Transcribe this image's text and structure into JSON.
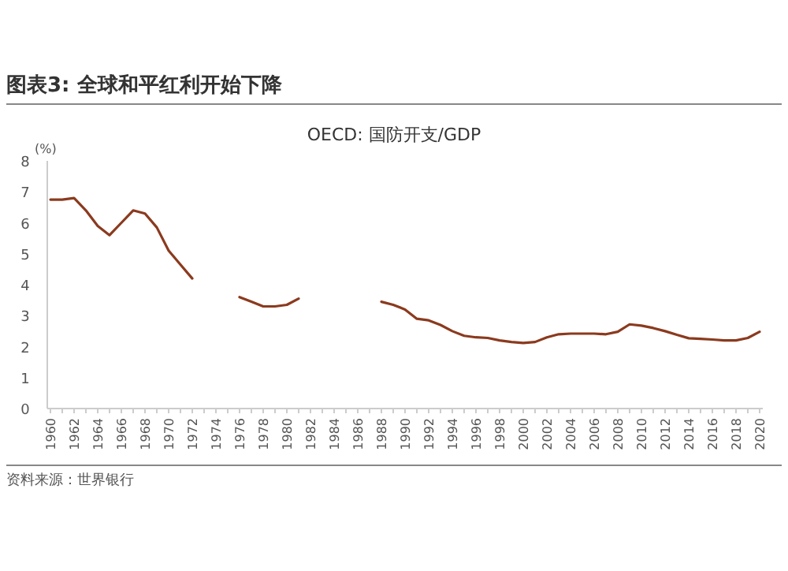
{
  "chart_data": {
    "type": "line",
    "title": "图表3: 全球和平红利开始下降",
    "subtitle": "OECD: 国防开支/GDP",
    "ylabel": "(%)",
    "annotations": [
      "资料来源：世界银行"
    ],
    "categories": [
      "1960",
      null,
      "1962",
      null,
      "1964",
      null,
      "1966",
      null,
      "1968",
      null,
      "1970",
      null,
      "1972",
      null,
      "1974",
      null,
      "1976",
      null,
      "1978",
      null,
      "1980",
      null,
      "1982",
      null,
      "1984",
      null,
      "1986",
      null,
      "1988",
      null,
      "1990",
      null,
      "1992",
      null,
      "1994",
      null,
      "1996",
      null,
      "1998",
      null,
      "2000",
      null,
      "2002",
      null,
      "2004",
      null,
      "2006",
      null,
      "2008",
      null,
      "2010",
      null,
      "2012",
      null,
      "2014",
      null,
      "2016",
      null,
      "2018",
      null,
      "2020"
    ],
    "series": [
      {
        "color": "#8b3a1e",
        "values": [
          6.75,
          6.75,
          6.8,
          6.4,
          5.9,
          5.6,
          6.0,
          6.4,
          6.3,
          5.85,
          5.1,
          4.65,
          4.2,
          null,
          null,
          null,
          3.6,
          3.45,
          3.3,
          3.3,
          3.35,
          3.55,
          null,
          null,
          null,
          null,
          null,
          null,
          3.45,
          3.35,
          3.2,
          2.9,
          2.85,
          2.7,
          2.5,
          2.35,
          2.3,
          2.28,
          2.2,
          2.15,
          2.12,
          2.15,
          2.3,
          2.4,
          2.42,
          2.42,
          2.42,
          2.4,
          2.48,
          2.72,
          2.68,
          2.6,
          2.5,
          2.38,
          2.27,
          2.25,
          2.23,
          2.2,
          2.2,
          2.28,
          2.48
        ]
      }
    ],
    "ylim": [
      0,
      8
    ],
    "yticks": [
      0,
      1,
      2,
      3,
      4,
      5,
      6,
      7,
      8
    ],
    "grid": false,
    "line_style": "solid",
    "marker": "none"
  }
}
